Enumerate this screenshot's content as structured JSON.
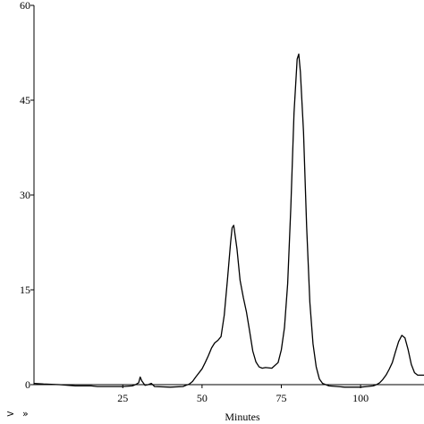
{
  "chart_data": {
    "type": "line",
    "title": "",
    "xlabel": "Minutes",
    "ylabel": "",
    "xlim": [
      -3,
      120
    ],
    "ylim": [
      0,
      60
    ],
    "x_ticks": [
      25,
      50,
      75,
      100
    ],
    "x_tick_labels": [
      "25",
      "50",
      "75",
      "100"
    ],
    "y_ticks": [
      0,
      15,
      30,
      45,
      60
    ],
    "y_tick_labels": [
      "0",
      "15",
      "30",
      "45",
      "60"
    ],
    "grid": false,
    "series": [
      {
        "x": [
          -3,
          0,
          5,
          10,
          15,
          17,
          20,
          25,
          28,
          29,
          30,
          30.5,
          31,
          32,
          33,
          34,
          35,
          40,
          44,
          45,
          46,
          47,
          48,
          50,
          51,
          52,
          53,
          54,
          55,
          56,
          57,
          58,
          59,
          59.5,
          60,
          61,
          62,
          63,
          64,
          65,
          66,
          67,
          68,
          69,
          70,
          72,
          74,
          75,
          76,
          77,
          78,
          79,
          80,
          80.5,
          81,
          82,
          83,
          84,
          85,
          86,
          87,
          88,
          90,
          95,
          100,
          102,
          104,
          105,
          106,
          107,
          108,
          109,
          110,
          111,
          112,
          113,
          114,
          115,
          116,
          117,
          118,
          120
        ],
        "y": [
          0.2,
          0.1,
          0.0,
          -0.2,
          -0.2,
          -0.3,
          -0.3,
          -0.3,
          -0.2,
          0.0,
          0.3,
          1.2,
          0.6,
          -0.1,
          0.0,
          0.2,
          -0.3,
          -0.4,
          -0.3,
          -0.1,
          0.1,
          0.5,
          1.2,
          2.5,
          3.5,
          4.6,
          5.8,
          6.6,
          7.0,
          7.6,
          11.0,
          16.5,
          22.5,
          24.8,
          25.2,
          21.5,
          16.5,
          13.8,
          11.5,
          8.5,
          5.3,
          3.6,
          2.8,
          2.6,
          2.7,
          2.6,
          3.5,
          5.5,
          9.0,
          16.0,
          28.0,
          43.0,
          51.5,
          52.3,
          49.5,
          40.0,
          25.0,
          13.0,
          6.5,
          2.8,
          0.9,
          0.2,
          -0.2,
          -0.4,
          -0.4,
          -0.3,
          -0.2,
          0.0,
          0.3,
          0.8,
          1.5,
          2.4,
          3.5,
          5.2,
          6.8,
          7.8,
          7.4,
          5.5,
          3.2,
          1.9,
          1.5,
          1.5
        ]
      }
    ]
  },
  "nav": {
    "prev_glyph": ">",
    "next_glyph": "»"
  }
}
